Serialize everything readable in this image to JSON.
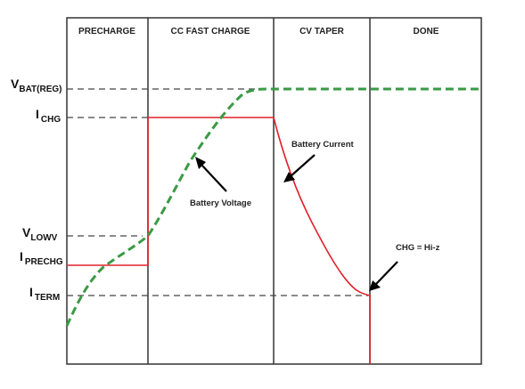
{
  "chart_data": {
    "type": "line",
    "title": "",
    "xlabel": "",
    "ylabel": "",
    "phases": [
      "PRECHARGE",
      "CC FAST CHARGE",
      "CV TAPER",
      "DONE"
    ],
    "y_levels": [
      {
        "id": "vbat",
        "main": "V",
        "sub": "BAT(REG)"
      },
      {
        "id": "ichg",
        "main": "I",
        "sub": "CHG"
      },
      {
        "id": "vlowv",
        "main": "V",
        "sub": "LOWV"
      },
      {
        "id": "iprechg",
        "main": "I",
        "sub": "PRECHG"
      },
      {
        "id": "iterm",
        "main": "I",
        "sub": "TERM"
      }
    ],
    "series": [
      {
        "name": "Battery Voltage",
        "color": "#3a9a45",
        "style": "dashed"
      },
      {
        "name": "Battery Current",
        "color": "#e0202a",
        "style": "solid"
      }
    ],
    "annotations": {
      "battery_voltage": "Battery Voltage",
      "battery_current": "Battery Current",
      "chg_hiz": "CHG = Hi-z"
    },
    "grid": false,
    "legend": "none"
  }
}
